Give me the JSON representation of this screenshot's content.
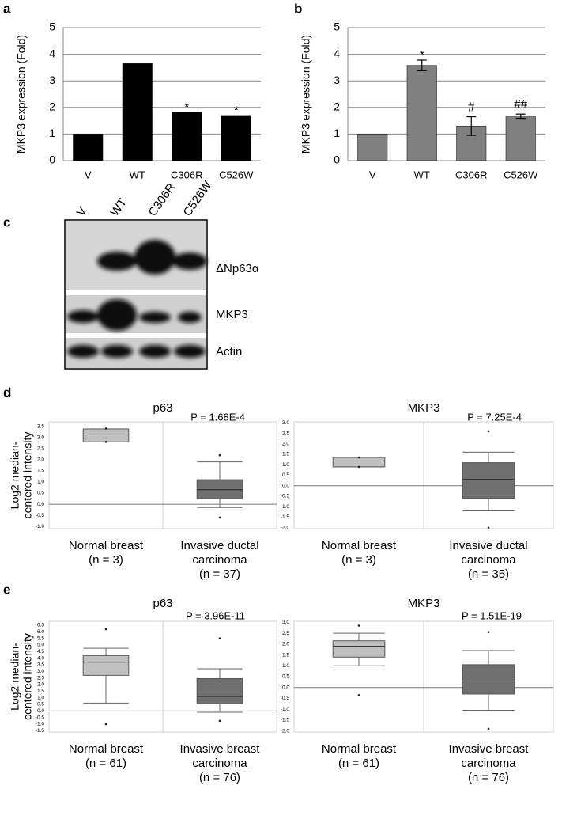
{
  "panel_labels": [
    "a",
    "b",
    "c",
    "d",
    "e"
  ],
  "blot": {
    "lanes": [
      "V",
      "WT",
      "C306R",
      "C526W"
    ],
    "bands": [
      "ΔNp63α",
      "MKP3",
      "Actin"
    ]
  },
  "chart_data": [
    {
      "type": "bar",
      "ylabel": "MKP3 expression (Fold)",
      "categories": [
        "V",
        "WT",
        "C306R",
        "C526W"
      ],
      "values": [
        1,
        3.65,
        1.82,
        1.7
      ],
      "color": "#000000",
      "ylim": [
        0,
        5
      ],
      "yticks": [
        0,
        1,
        2,
        3,
        4,
        5
      ],
      "grid": true,
      "annotations": [
        {
          "x": "C306R",
          "text": "*"
        },
        {
          "x": "C526W",
          "text": "*"
        }
      ]
    },
    {
      "type": "bar",
      "ylabel": "MKP3 expression (Fold)",
      "categories": [
        "V",
        "WT",
        "C306R",
        "C526W"
      ],
      "values": [
        1,
        3.58,
        1.3,
        1.67
      ],
      "errors": [
        0,
        0.2,
        0.35,
        0.08
      ],
      "color": "#808080",
      "ylim": [
        0,
        5
      ],
      "yticks": [
        0,
        1,
        2,
        3,
        4,
        5
      ],
      "grid": true,
      "annotations": [
        {
          "x": "WT",
          "text": "*"
        },
        {
          "x": "C306R",
          "text": "#"
        },
        {
          "x": "C526W",
          "text": "##"
        }
      ]
    },
    {
      "type": "box",
      "title": "p63",
      "pvalue": "P = 1.68E-4",
      "ylabel": [
        "Log2 median-",
        "centered intensity"
      ],
      "categories": [
        [
          "Normal breast",
          "(n = 3)"
        ],
        [
          "Invasive ductal",
          "carcinoma",
          "(n = 37)"
        ]
      ],
      "boxes": [
        {
          "color": "#c0c0c0",
          "whisker_low": 2.8,
          "q1": 2.8,
          "median": 3.15,
          "q3": 3.38,
          "whisker_high": 3.38,
          "outliers": [
            3.4,
            2.8
          ]
        },
        {
          "color": "#707070",
          "whisker_low": -0.15,
          "q1": 0.25,
          "median": 0.65,
          "q3": 1.1,
          "whisker_high": 1.9,
          "outliers": [
            2.2,
            -0.6
          ]
        }
      ],
      "hline": 0,
      "ylim": [
        -1.1,
        3.7
      ],
      "yticks": [
        {
          "value": -1,
          "label": "-1.0"
        },
        -0.5,
        {
          "value": 0,
          "label": "0.0"
        },
        0.5,
        {
          "value": 1,
          "label": "1.0"
        },
        1.5,
        {
          "value": 2,
          "label": "2.0"
        },
        2.5,
        {
          "value": 3,
          "label": "3.0"
        },
        3.5
      ]
    },
    {
      "type": "box",
      "title": "MKP3",
      "pvalue": "P = 7.25E-4",
      "categories": [
        [
          "Normal breast",
          "(n = 3)"
        ],
        [
          "Invasive ductal",
          "carcinoma",
          "(n = 35)"
        ]
      ],
      "boxes": [
        {
          "color": "#c0c0c0",
          "whisker_low": 0.9,
          "q1": 0.9,
          "median": 1.18,
          "q3": 1.35,
          "whisker_high": 1.35,
          "outliers": [
            1.35,
            0.9
          ]
        },
        {
          "color": "#707070",
          "whisker_low": -1.2,
          "q1": -0.6,
          "median": 0.3,
          "q3": 1.1,
          "whisker_high": 1.6,
          "outliers": [
            2.6,
            -2
          ]
        }
      ],
      "hline": 0,
      "ylim": [
        -2.05,
        3.05
      ],
      "yticks": [
        {
          "value": -2,
          "label": "-2.0"
        },
        -1.5,
        {
          "value": -1,
          "label": "-1.0"
        },
        -0.5,
        {
          "value": 0,
          "label": "0.0"
        },
        0.5,
        {
          "value": 1,
          "label": "1.0"
        },
        1.5,
        {
          "value": 2,
          "label": "2.0"
        },
        2.5,
        {
          "value": 3,
          "label": "3.0"
        }
      ]
    },
    {
      "type": "box",
      "title": "p63",
      "pvalue": "P = 3.96E-11",
      "ylabel": [
        "Log2 median-",
        "centered intensity"
      ],
      "categories": [
        [
          "Normal breast",
          "(n = 61)"
        ],
        [
          "Invasive breast",
          "carcinoma",
          "(n = 76)"
        ]
      ],
      "boxes": [
        {
          "color": "#c0c0c0",
          "whisker_low": 0.6,
          "q1": 2.7,
          "median": 3.7,
          "q3": 4.2,
          "whisker_high": 4.75,
          "outliers": [
            6.2,
            -1
          ]
        },
        {
          "color": "#707070",
          "whisker_low": -0.1,
          "q1": 0.55,
          "median": 1.1,
          "q3": 2.45,
          "whisker_high": 3.2,
          "outliers": [
            5.5,
            -0.75
          ]
        }
      ],
      "hline": 0,
      "ylim": [
        -1.6,
        6.8
      ],
      "yticks": [
        -1.5,
        {
          "value": -1,
          "label": "-1.0"
        },
        -0.5,
        {
          "value": 0,
          "label": "0.0"
        },
        0.5,
        {
          "value": 1,
          "label": "1.0"
        },
        1.5,
        {
          "value": 2,
          "label": "2.0"
        },
        2.5,
        {
          "value": 3,
          "label": "3.0"
        },
        3.5,
        {
          "value": 4,
          "label": "4.0"
        },
        4.5,
        {
          "value": 5,
          "label": "5.0"
        },
        5.5,
        {
          "value": 6,
          "label": "6.0"
        },
        6.5
      ]
    },
    {
      "type": "box",
      "title": "MKP3",
      "pvalue": "P = 1.51E-19",
      "categories": [
        [
          "Normal breast",
          "(n = 61)"
        ],
        [
          "Invasive breast",
          "carcinoma",
          "(n = 76)"
        ]
      ],
      "boxes": [
        {
          "color": "#c0c0c0",
          "whisker_low": 1,
          "q1": 1.4,
          "median": 1.9,
          "q3": 2.15,
          "whisker_high": 2.5,
          "outliers": [
            2.85,
            -0.35
          ]
        },
        {
          "color": "#707070",
          "whisker_low": -1.05,
          "q1": -0.3,
          "median": 0.3,
          "q3": 1.05,
          "whisker_high": 1.7,
          "outliers": [
            2.55,
            -1.9
          ]
        }
      ],
      "hline": 0,
      "ylim": [
        -2.05,
        3.05
      ],
      "yticks": [
        {
          "value": -2,
          "label": "-2.0"
        },
        -1.5,
        {
          "value": -1,
          "label": "-1.0"
        },
        -0.5,
        {
          "value": 0,
          "label": "0.0"
        },
        0.5,
        {
          "value": 1,
          "label": "1.0"
        },
        1.5,
        {
          "value": 2,
          "label": "2.0"
        },
        2.5,
        {
          "value": 3,
          "label": "3.0"
        }
      ]
    }
  ]
}
